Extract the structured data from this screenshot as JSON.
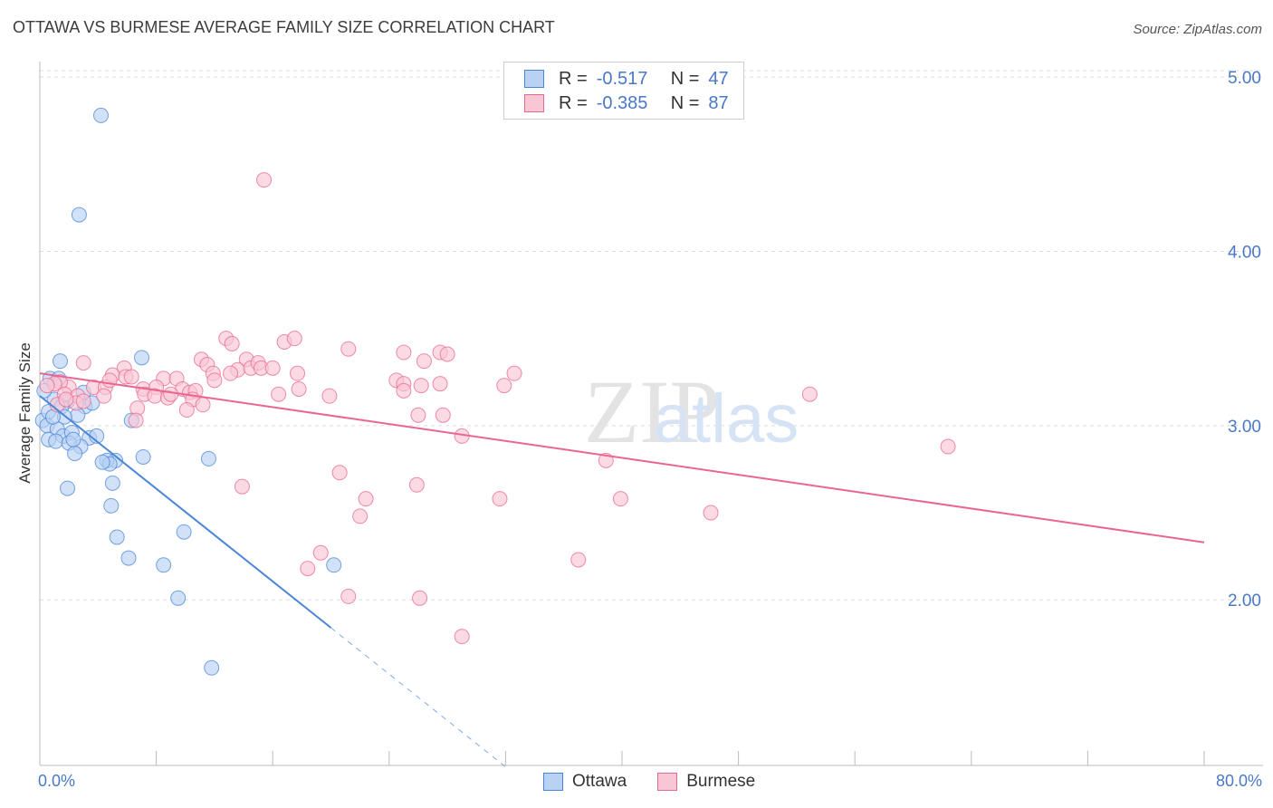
{
  "title": "OTTAWA VS BURMESE AVERAGE FAMILY SIZE CORRELATION CHART",
  "source": "Source: ZipAtlas.com",
  "watermark": {
    "zip": "ZIP",
    "atlas": "atlas"
  },
  "legend": {
    "r_label": "R =",
    "n_label": "N =",
    "items": [
      {
        "name": "Ottawa",
        "r": "-0.517",
        "n": "47",
        "color": "#4a86d8",
        "fill": "#b9d1f3"
      },
      {
        "name": "Burmese",
        "r": "-0.385",
        "n": "87",
        "color": "#e8678f",
        "fill": "#f9c6d5"
      }
    ]
  },
  "x_axis": {
    "min_label": "0.0%",
    "max_label": "80.0%"
  },
  "chart_data": {
    "type": "scatter",
    "title": "OTTAWA VS BURMESE AVERAGE FAMILY SIZE CORRELATION CHART",
    "xlabel": "",
    "ylabel": "Average Family Size",
    "xlim": [
      0,
      80
    ],
    "ylim": [
      1.05,
      5.12
    ],
    "yticks": [
      2.0,
      3.0,
      4.0,
      5.0
    ],
    "ytick_labels": [
      "2.00",
      "3.00",
      "4.00",
      "5.00"
    ],
    "grid": true,
    "legend_position": "top-center",
    "series": [
      {
        "name": "Ottawa",
        "color": "#4a86d8",
        "fill": "#b9d1f3",
        "trend": {
          "x0": 0.0,
          "y0": 3.17,
          "x1": 20.0,
          "y1": 1.84,
          "dash_to_x": 32.0
        },
        "points": [
          [
            4.2,
            4.78
          ],
          [
            2.7,
            4.21
          ],
          [
            1.4,
            3.37
          ],
          [
            7.0,
            3.39
          ],
          [
            0.7,
            3.27
          ],
          [
            3.0,
            3.19
          ],
          [
            1.0,
            3.15
          ],
          [
            3.1,
            3.11
          ],
          [
            1.9,
            3.14
          ],
          [
            1.5,
            3.11
          ],
          [
            0.2,
            3.03
          ],
          [
            2.6,
            3.06
          ],
          [
            0.6,
            3.08
          ],
          [
            1.7,
            3.05
          ],
          [
            0.5,
            3.0
          ],
          [
            1.2,
            2.98
          ],
          [
            6.3,
            3.03
          ],
          [
            1.6,
            2.94
          ],
          [
            2.2,
            2.96
          ],
          [
            3.4,
            2.93
          ],
          [
            2.8,
            2.88
          ],
          [
            0.6,
            2.92
          ],
          [
            1.1,
            2.91
          ],
          [
            2.0,
            2.9
          ],
          [
            2.4,
            2.84
          ],
          [
            5.2,
            2.8
          ],
          [
            7.1,
            2.82
          ],
          [
            11.6,
            2.81
          ],
          [
            4.6,
            2.8
          ],
          [
            4.8,
            2.78
          ],
          [
            5.0,
            2.67
          ],
          [
            1.9,
            2.64
          ],
          [
            4.9,
            2.54
          ],
          [
            5.3,
            2.36
          ],
          [
            9.9,
            2.39
          ],
          [
            6.1,
            2.24
          ],
          [
            8.5,
            2.2
          ],
          [
            20.2,
            2.2
          ],
          [
            9.5,
            2.01
          ],
          [
            11.8,
            1.61
          ],
          [
            0.3,
            3.2
          ],
          [
            3.6,
            3.13
          ],
          [
            1.3,
            3.27
          ],
          [
            2.3,
            2.92
          ],
          [
            0.9,
            3.05
          ],
          [
            3.9,
            2.94
          ],
          [
            4.3,
            2.79
          ]
        ]
      },
      {
        "name": "Burmese",
        "color": "#e8678f",
        "fill": "#f9c6d5",
        "trend": {
          "x0": 0.0,
          "y0": 3.3,
          "x1": 80.0,
          "y1": 2.33
        },
        "points": [
          [
            15.4,
            4.41
          ],
          [
            12.8,
            3.5
          ],
          [
            16.8,
            3.48
          ],
          [
            17.5,
            3.5
          ],
          [
            13.2,
            3.47
          ],
          [
            21.2,
            3.44
          ],
          [
            27.5,
            3.42
          ],
          [
            25.0,
            3.42
          ],
          [
            28.0,
            3.41
          ],
          [
            11.1,
            3.38
          ],
          [
            14.2,
            3.38
          ],
          [
            3.0,
            3.36
          ],
          [
            11.5,
            3.35
          ],
          [
            26.4,
            3.37
          ],
          [
            13.6,
            3.32
          ],
          [
            14.5,
            3.33
          ],
          [
            15.0,
            3.36
          ],
          [
            15.2,
            3.33
          ],
          [
            16.0,
            3.33
          ],
          [
            17.7,
            3.3
          ],
          [
            11.9,
            3.3
          ],
          [
            5.8,
            3.33
          ],
          [
            12.0,
            3.26
          ],
          [
            13.1,
            3.3
          ],
          [
            32.6,
            3.3
          ],
          [
            5.0,
            3.29
          ],
          [
            5.9,
            3.28
          ],
          [
            6.3,
            3.28
          ],
          [
            8.5,
            3.27
          ],
          [
            9.4,
            3.27
          ],
          [
            24.5,
            3.26
          ],
          [
            25.0,
            3.24
          ],
          [
            27.5,
            3.24
          ],
          [
            31.9,
            3.23
          ],
          [
            26.2,
            3.23
          ],
          [
            2.0,
            3.22
          ],
          [
            3.7,
            3.22
          ],
          [
            4.5,
            3.22
          ],
          [
            7.1,
            3.21
          ],
          [
            8.0,
            3.22
          ],
          [
            9.8,
            3.21
          ],
          [
            10.3,
            3.19
          ],
          [
            10.7,
            3.2
          ],
          [
            16.4,
            3.18
          ],
          [
            17.8,
            3.21
          ],
          [
            19.9,
            3.17
          ],
          [
            25.0,
            3.2
          ],
          [
            1.4,
            3.25
          ],
          [
            1.0,
            3.24
          ],
          [
            1.7,
            3.18
          ],
          [
            2.6,
            3.17
          ],
          [
            4.4,
            3.17
          ],
          [
            7.2,
            3.18
          ],
          [
            7.9,
            3.17
          ],
          [
            8.8,
            3.16
          ],
          [
            10.5,
            3.15
          ],
          [
            1.2,
            3.12
          ],
          [
            2.5,
            3.13
          ],
          [
            3.0,
            3.14
          ],
          [
            1.8,
            3.15
          ],
          [
            6.7,
            3.1
          ],
          [
            11.2,
            3.12
          ],
          [
            10.1,
            3.09
          ],
          [
            52.9,
            3.18
          ],
          [
            26.0,
            3.06
          ],
          [
            27.7,
            3.06
          ],
          [
            29.0,
            2.94
          ],
          [
            38.9,
            2.8
          ],
          [
            62.4,
            2.88
          ],
          [
            20.6,
            2.73
          ],
          [
            13.9,
            2.65
          ],
          [
            25.9,
            2.66
          ],
          [
            22.4,
            2.58
          ],
          [
            31.6,
            2.58
          ],
          [
            39.9,
            2.58
          ],
          [
            46.1,
            2.5
          ],
          [
            22.0,
            2.48
          ],
          [
            19.3,
            2.27
          ],
          [
            18.4,
            2.18
          ],
          [
            37.0,
            2.23
          ],
          [
            21.2,
            2.02
          ],
          [
            26.1,
            2.01
          ],
          [
            29.0,
            1.79
          ],
          [
            6.6,
            3.03
          ],
          [
            0.5,
            3.23
          ],
          [
            4.8,
            3.26
          ],
          [
            9.0,
            3.18
          ]
        ]
      }
    ]
  }
}
